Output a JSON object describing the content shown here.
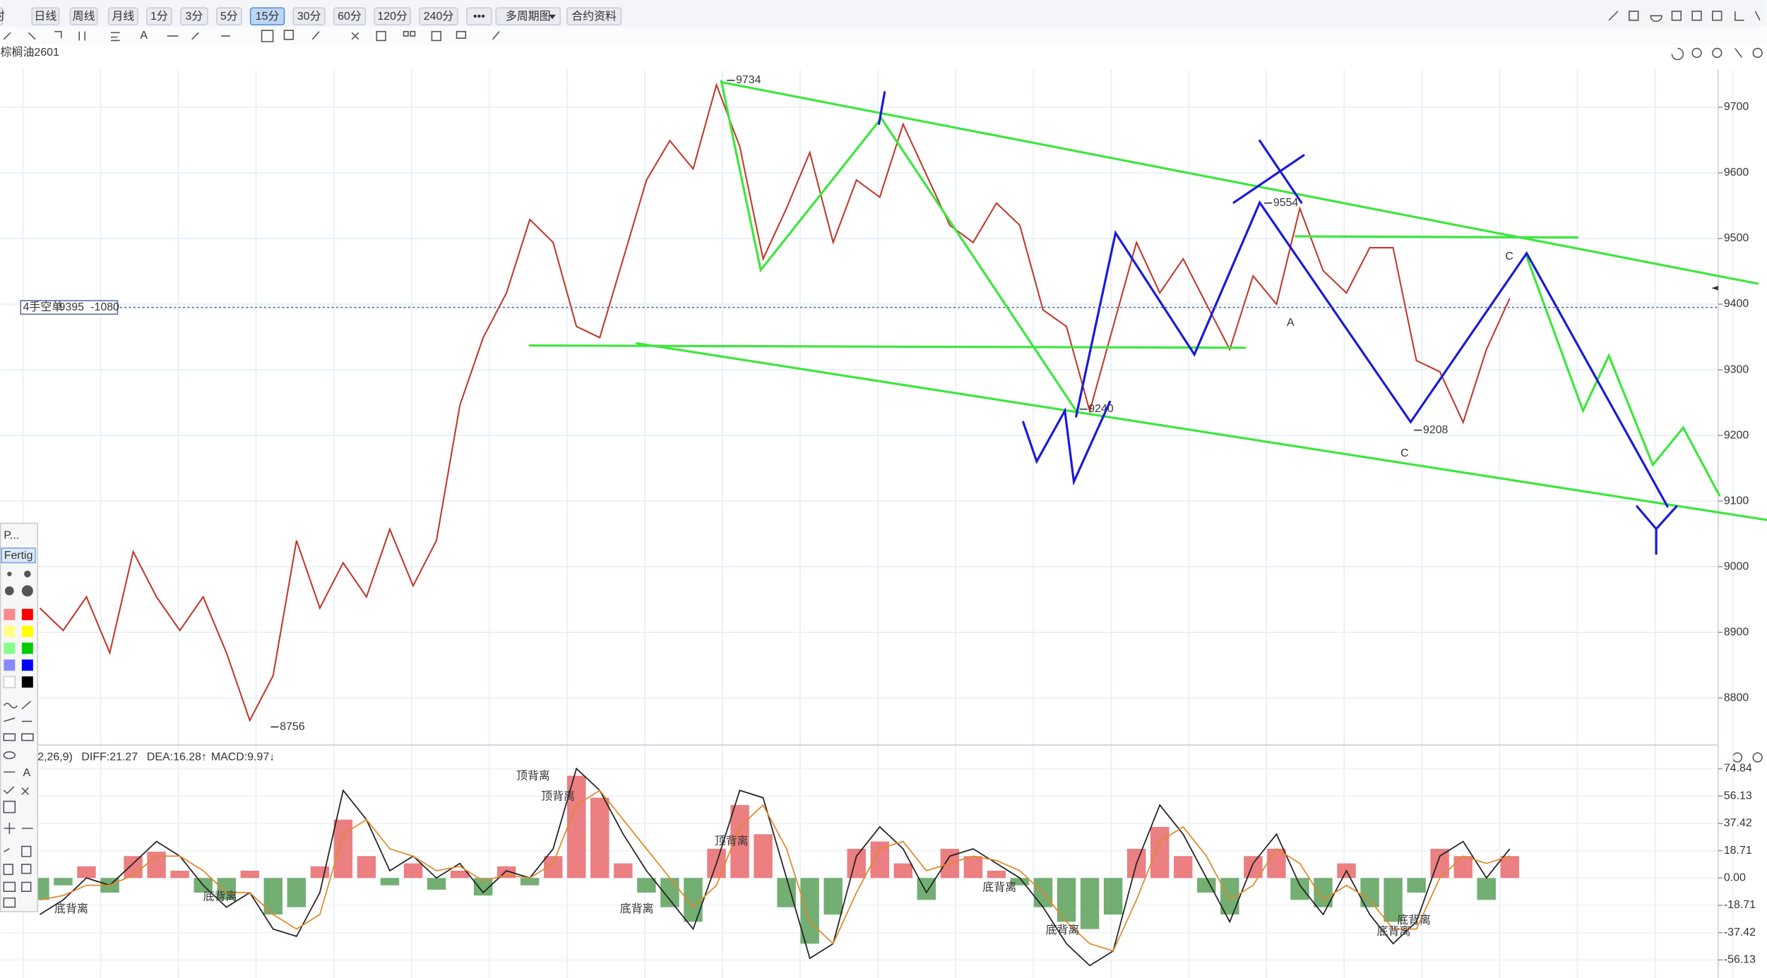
{
  "toolbar": {
    "periods": [
      "分时",
      "日线",
      "周线",
      "月线",
      "1分",
      "3分",
      "5分",
      "15分",
      "30分",
      "60分",
      "120分",
      "240分",
      "•••",
      "多周期图",
      "合约资料"
    ],
    "active": "15分",
    "text_tool": "A"
  },
  "drawing_panel": {
    "title": "P...",
    "done": "Fertig",
    "text_tool": "A"
  },
  "handwritten": [
    "C",
    "C",
    "A"
  ],
  "chart_data": [
    {
      "type": "line",
      "title": "棕榈油2601",
      "color": "#c0392b",
      "ylim": [
        8737,
        9757
      ],
      "yticks": [
        9700,
        9600,
        9500,
        9400,
        9300,
        9200,
        9100,
        9000,
        8900,
        8800
      ],
      "grid": true,
      "values": [
        8937,
        8903,
        8954,
        8869,
        9023,
        8954,
        8903,
        8954,
        8869,
        8766,
        8834,
        9040,
        8937,
        9006,
        8954,
        9057,
        8971,
        9040,
        9246,
        9349,
        9417,
        9529,
        9494,
        9366,
        9349,
        9469,
        9589,
        9649,
        9606,
        9734,
        9640,
        9469,
        9546,
        9631,
        9494,
        9589,
        9563,
        9674,
        9597,
        9520,
        9494,
        9554,
        9520,
        9391,
        9366,
        9237,
        9366,
        9494,
        9417,
        9469,
        9400,
        9331,
        9443,
        9400,
        9546,
        9451,
        9417,
        9486,
        9486,
        9314,
        9297,
        9220,
        9331,
        9409
      ],
      "annotations": [
        9734,
        9554,
        9240,
        9208,
        8756
      ],
      "order": {
        "label": "4手空单",
        "price": 9395,
        "pnl": -1080
      }
    },
    {
      "type": "bar",
      "title": "2,26,9)",
      "readouts": [
        "DIFF:21.27",
        "DEA:16.28↑",
        "MACD:9.97↓"
      ],
      "ylim": [
        -68.5,
        77.2
      ],
      "yticks": [
        74.84,
        56.13,
        37.42,
        18.71,
        {
          "value": 0,
          "label": "0.00"
        },
        -18.71,
        -37.42,
        -56.13
      ],
      "up_color": "#e8696b",
      "down_color": "#5aa05a",
      "histogram": [
        -15,
        -5,
        8,
        -10,
        15,
        18,
        5,
        -10,
        -15,
        5,
        -25,
        -20,
        8,
        40,
        15,
        -5,
        10,
        -8,
        5,
        -12,
        8,
        -5,
        15,
        70,
        55,
        10,
        -10,
        -20,
        -30,
        20,
        50,
        30,
        -20,
        -45,
        -25,
        20,
        25,
        10,
        -15,
        20,
        15,
        5,
        -5,
        -20,
        -30,
        -35,
        -25,
        20,
        35,
        15,
        -10,
        -25,
        15,
        20,
        -15,
        -20,
        10,
        -20,
        -30,
        -10,
        20,
        15,
        -15,
        15
      ],
      "dif": {
        "color": "#222222",
        "values": [
          -25,
          -15,
          0,
          -5,
          10,
          25,
          15,
          -5,
          -20,
          -10,
          -35,
          -40,
          -10,
          60,
          40,
          5,
          15,
          0,
          10,
          -10,
          5,
          0,
          20,
          75,
          60,
          30,
          5,
          -15,
          -35,
          10,
          60,
          55,
          0,
          -55,
          -45,
          15,
          35,
          20,
          -10,
          15,
          20,
          10,
          0,
          -20,
          -45,
          -60,
          -50,
          10,
          50,
          30,
          0,
          -30,
          10,
          30,
          -5,
          -25,
          5,
          -25,
          -45,
          -30,
          15,
          25,
          0,
          20
        ]
      },
      "dea": {
        "color": "#e08a2c",
        "values": [
          -15,
          -12,
          -5,
          -5,
          2,
          15,
          15,
          5,
          -10,
          -10,
          -25,
          -35,
          -25,
          30,
          40,
          20,
          15,
          5,
          8,
          -2,
          2,
          0,
          10,
          50,
          60,
          40,
          20,
          0,
          -20,
          -5,
          35,
          50,
          20,
          -30,
          -45,
          -10,
          20,
          25,
          5,
          10,
          15,
          12,
          5,
          -10,
          -30,
          -45,
          -50,
          -15,
          25,
          35,
          15,
          -15,
          -5,
          20,
          10,
          -15,
          -5,
          -15,
          -35,
          -35,
          0,
          15,
          10,
          15
        ]
      },
      "annotations": [
        {
          "text": "顶背离",
          "color": "#2e9b3a"
        },
        {
          "text": "顶背离",
          "color": "#2e9b3a"
        },
        {
          "text": "顶背离",
          "color": "#2e9b3a"
        },
        {
          "text": "底背离",
          "color": "#d9473f"
        },
        {
          "text": "底背离",
          "color": "#d9473f"
        },
        {
          "text": "底背离",
          "color": "#d9473f"
        },
        {
          "text": "底背离",
          "color": "#d9473f"
        },
        {
          "text": "底背离",
          "color": "#d9473f"
        },
        {
          "text": "底背离",
          "color": "#d9473f"
        }
      ]
    }
  ]
}
